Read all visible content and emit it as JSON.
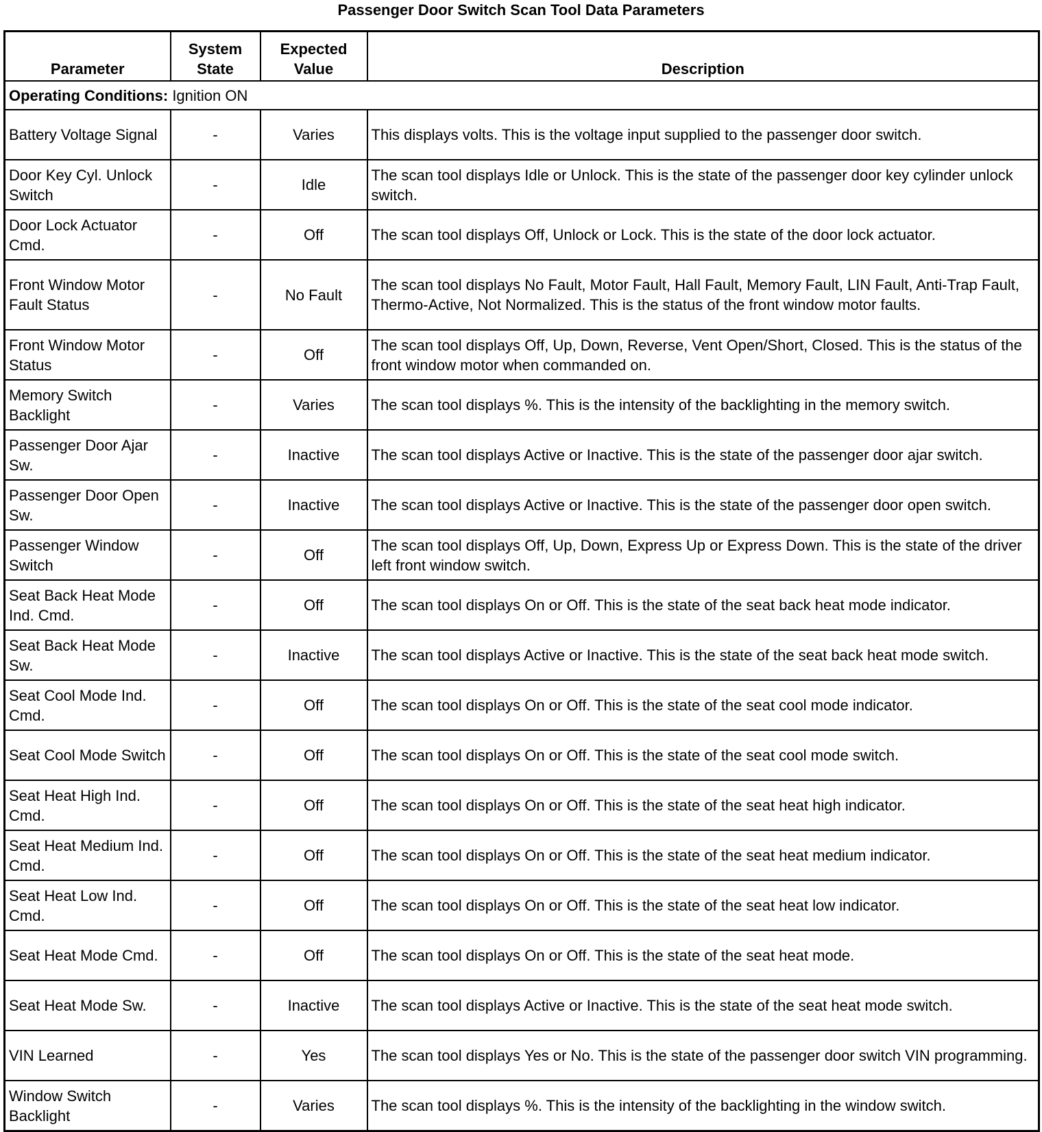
{
  "title": "Passenger Door Switch Scan Tool Data Parameters",
  "headers": {
    "parameter": "Parameter",
    "system_state": "System State",
    "expected_value": "Expected Value",
    "description": "Description"
  },
  "operating_conditions": {
    "label": "Operating Conditions:",
    "value": " Ignition ON"
  },
  "rows": [
    {
      "parameter": "Battery Voltage Signal",
      "state": "-",
      "value": "Varies",
      "description": "This displays volts. This is the voltage input supplied to the passenger door switch."
    },
    {
      "parameter": "Door Key Cyl. Unlock Switch",
      "state": "-",
      "value": "Idle",
      "description": "The scan tool displays Idle or Unlock. This is the state of the passenger door key cylinder unlock switch."
    },
    {
      "parameter": "Door Lock Actuator Cmd.",
      "state": "-",
      "value": "Off",
      "description": "The scan tool displays Off, Unlock or Lock. This is the state of the door lock actuator."
    },
    {
      "parameter": "Front Window Motor Fault Status",
      "state": "-",
      "value": "No Fault",
      "description": "The scan tool displays No Fault, Motor Fault, Hall Fault, Memory Fault, LIN Fault, Anti-Trap Fault, Thermo-Active, Not Normalized. This is the status of the front window motor faults."
    },
    {
      "parameter": "Front Window Motor Status",
      "state": "-",
      "value": "Off",
      "description": "The scan tool displays Off, Up, Down, Reverse, Vent Open/Short, Closed. This is the status of the front window motor when commanded on."
    },
    {
      "parameter": "Memory Switch Backlight",
      "state": "-",
      "value": "Varies",
      "description": "The scan tool displays %. This is the intensity of the backlighting in the memory switch."
    },
    {
      "parameter": "Passenger Door Ajar Sw.",
      "state": "-",
      "value": "Inactive",
      "description": "The scan tool displays Active or Inactive. This is the state of the passenger door ajar switch."
    },
    {
      "parameter": "Passenger Door Open Sw.",
      "state": "-",
      "value": "Inactive",
      "description": "The scan tool displays Active or Inactive. This is the state of the passenger door open switch."
    },
    {
      "parameter": "Passenger Window Switch",
      "state": "-",
      "value": "Off",
      "description": "The scan tool displays Off, Up, Down, Express Up or Express Down. This is the state of the driver left front window switch."
    },
    {
      "parameter": "Seat Back Heat Mode Ind. Cmd.",
      "state": "-",
      "value": "Off",
      "description": "The scan tool displays On or Off. This is the state of the seat back heat mode indicator."
    },
    {
      "parameter": "Seat Back Heat Mode Sw.",
      "state": "-",
      "value": "Inactive",
      "description": "The scan tool displays Active or Inactive. This is the state of the seat back heat mode switch."
    },
    {
      "parameter": "Seat Cool Mode Ind. Cmd.",
      "state": "-",
      "value": "Off",
      "description": "The scan tool displays On or Off. This is the state of the seat cool mode indicator."
    },
    {
      "parameter": "Seat Cool Mode Switch",
      "state": "-",
      "value": "Off",
      "description": "The scan tool displays On or Off. This is the state of the seat cool mode switch."
    },
    {
      "parameter": "Seat Heat High Ind. Cmd.",
      "state": "-",
      "value": "Off",
      "description": "The scan tool displays On or Off. This is the state of the seat heat high indicator."
    },
    {
      "parameter": "Seat Heat Medium Ind. Cmd.",
      "state": "-",
      "value": "Off",
      "description": "The scan tool displays On or Off. This is the state of the seat heat medium indicator."
    },
    {
      "parameter": "Seat Heat Low Ind. Cmd.",
      "state": "-",
      "value": "Off",
      "description": "The scan tool displays On or Off. This is the state of the seat heat low indicator."
    },
    {
      "parameter": "Seat Heat Mode Cmd.",
      "state": "-",
      "value": "Off",
      "description": "The scan tool displays On or Off. This is the state of the seat heat mode."
    },
    {
      "parameter": "Seat Heat Mode Sw.",
      "state": "-",
      "value": "Inactive",
      "description": "The scan tool displays Active or Inactive. This is the state of the seat heat mode switch."
    },
    {
      "parameter": "VIN Learned",
      "state": "-",
      "value": "Yes",
      "description": "The scan tool displays Yes or No. This is the state of the passenger door switch VIN programming."
    },
    {
      "parameter": "Window Switch Backlight",
      "state": "-",
      "value": "Varies",
      "description": "The scan tool displays %. This is the intensity of the backlighting in the window switch."
    }
  ]
}
